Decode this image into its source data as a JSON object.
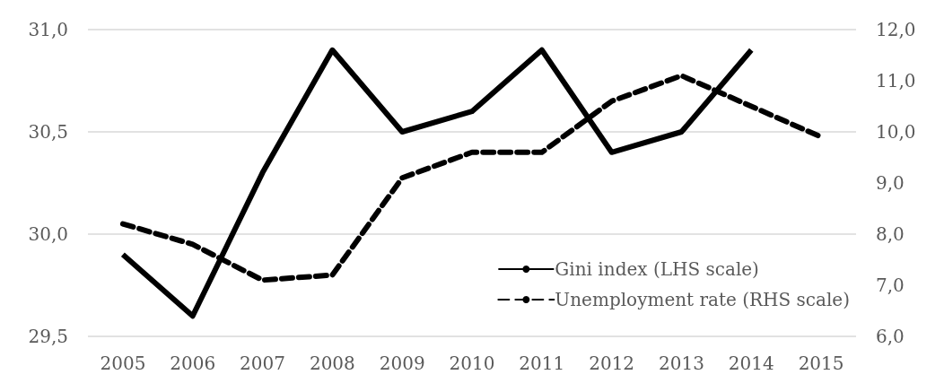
{
  "chart_data": {
    "type": "line",
    "categories": [
      "2005",
      "2006",
      "2007",
      "2008",
      "2009",
      "2010",
      "2011",
      "2012",
      "2013",
      "2014",
      "2015"
    ],
    "series": [
      {
        "name": "Gini index (LHS scale)",
        "color": "#000000",
        "line_style": "solid",
        "values": [
          29.9,
          29.6,
          30.3,
          30.9,
          30.5,
          30.6,
          30.9,
          30.4,
          30.5,
          30.9,
          null
        ]
      },
      {
        "name": "Unemployment rate (RHS scale)",
        "color": "#000000",
        "line_style": "dashed",
        "axis": "y2",
        "values": [
          8.2,
          7.8,
          7.1,
          7.2,
          9.1,
          9.6,
          9.6,
          10.6,
          11.1,
          10.5,
          9.9
        ]
      }
    ],
    "ylim": [
      29.5,
      31.0
    ],
    "yticks": [
      {
        "value": 29.5,
        "label": "29,5"
      },
      {
        "value": 30.0,
        "label": "30,0"
      },
      {
        "value": 30.5,
        "label": "30,5"
      },
      {
        "value": 31.0,
        "label": "31,0"
      }
    ],
    "y2lim": [
      6.0,
      12.0
    ],
    "y2ticks": [
      {
        "value": 6,
        "label": "6,0"
      },
      {
        "value": 7,
        "label": "7,0"
      },
      {
        "value": 8,
        "label": "8,0"
      },
      {
        "value": 9,
        "label": "9,0"
      },
      {
        "value": 10,
        "label": "10,0"
      },
      {
        "value": 11,
        "label": "11,0"
      },
      {
        "value": 12,
        "label": "12,0"
      }
    ],
    "grid": "y",
    "legend": "bottom right",
    "marker": "none"
  }
}
